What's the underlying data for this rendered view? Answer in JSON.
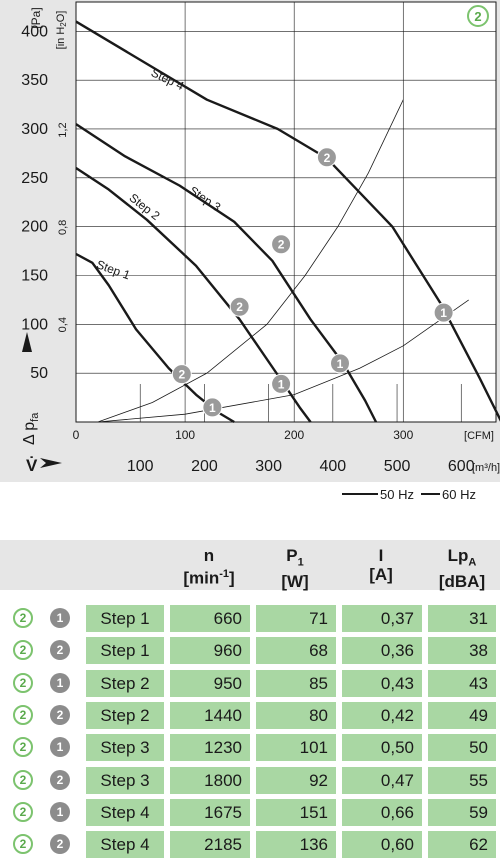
{
  "chart_data": {
    "type": "line",
    "badge": "2",
    "y_unit_left": "[Pa]",
    "y_unit_right": "[in H",
    "y_unit_right_sub": "2",
    "y_unit_right_end": "O]",
    "y_axis_label": "Δ p",
    "y_axis_label_sub": "fa",
    "x_axis_label": "V̇",
    "x_unit_cfm": "[CFM]",
    "x_unit_m3h": "[m³/h]",
    "y_ticks_pa": [
      50,
      100,
      150,
      200,
      250,
      300,
      350,
      400
    ],
    "y_ticks_inh2o": [
      "0,4",
      "0,8",
      "1,2"
    ],
    "x_ticks_cfm": [
      0,
      100,
      200,
      300
    ],
    "x_ticks_m3h": [
      100,
      200,
      300,
      400,
      500,
      600
    ],
    "xlim_cfm": [
      0,
      385
    ],
    "ylim_pa": [
      0,
      430
    ],
    "series": [
      {
        "name": "Step 1",
        "points": [
          [
            0,
            172
          ],
          [
            15,
            163
          ],
          [
            30,
            140
          ],
          [
            55,
            95
          ],
          [
            85,
            55
          ],
          [
            110,
            28
          ],
          [
            130,
            10
          ],
          [
            145,
            0
          ]
        ]
      },
      {
        "name": "Step 2",
        "points": [
          [
            0,
            260
          ],
          [
            30,
            238
          ],
          [
            65,
            207
          ],
          [
            110,
            160
          ],
          [
            150,
            105
          ],
          [
            185,
            48
          ],
          [
            205,
            15
          ],
          [
            215,
            0
          ]
        ]
      },
      {
        "name": "Step 3",
        "points": [
          [
            0,
            305
          ],
          [
            45,
            272
          ],
          [
            95,
            242
          ],
          [
            145,
            205
          ],
          [
            180,
            165
          ],
          [
            215,
            105
          ],
          [
            245,
            60
          ],
          [
            265,
            22
          ],
          [
            275,
            0
          ]
        ]
      },
      {
        "name": "Step 4",
        "points": [
          [
            0,
            410
          ],
          [
            60,
            370
          ],
          [
            120,
            330
          ],
          [
            185,
            300
          ],
          [
            230,
            270
          ],
          [
            290,
            200
          ],
          [
            335,
            120
          ],
          [
            370,
            45
          ],
          [
            390,
            0
          ]
        ]
      }
    ],
    "operating_lines": [
      {
        "points": [
          [
            20,
            0
          ],
          [
            70,
            20
          ],
          [
            120,
            50
          ],
          [
            175,
            100
          ],
          [
            210,
            150
          ],
          [
            240,
            200
          ],
          [
            268,
            255
          ],
          [
            300,
            330
          ]
        ]
      },
      {
        "points": [
          [
            20,
            0
          ],
          [
            100,
            8
          ],
          [
            200,
            28
          ],
          [
            260,
            55
          ],
          [
            300,
            78
          ],
          [
            360,
            125
          ]
        ]
      }
    ],
    "markers": [
      {
        "label": "2",
        "x": 97,
        "y": 49
      },
      {
        "label": "2",
        "x": 150,
        "y": 118
      },
      {
        "label": "2",
        "x": 188,
        "y": 182
      },
      {
        "label": "2",
        "x": 230,
        "y": 271
      },
      {
        "label": "1",
        "x": 125,
        "y": 15
      },
      {
        "label": "1",
        "x": 188,
        "y": 39
      },
      {
        "label": "1",
        "x": 242,
        "y": 60
      },
      {
        "label": "1",
        "x": 337,
        "y": 112
      }
    ],
    "legend": [
      {
        "label": "50 Hz",
        "style": "solid"
      },
      {
        "label": "60 Hz",
        "style": "dashed"
      }
    ]
  },
  "table": {
    "headers": [
      {
        "main": "n",
        "sub": "[min",
        "sup": "-1",
        "end": "]"
      },
      {
        "main": "P",
        "main_sub": "1",
        "sub": "[W]"
      },
      {
        "main": "I",
        "sub": "[A]"
      },
      {
        "main": "Lp",
        "main_sub": "A",
        "sub": "[dBA]"
      }
    ],
    "rows": [
      {
        "curve": "2",
        "freq": "1",
        "step": "Step 1",
        "n": "660",
        "p": "71",
        "i": "0,37",
        "lp": "31"
      },
      {
        "curve": "2",
        "freq": "2",
        "step": "Step 1",
        "n": "960",
        "p": "68",
        "i": "0,36",
        "lp": "38"
      },
      {
        "curve": "2",
        "freq": "1",
        "step": "Step 2",
        "n": "950",
        "p": "85",
        "i": "0,43",
        "lp": "43"
      },
      {
        "curve": "2",
        "freq": "2",
        "step": "Step 2",
        "n": "1440",
        "p": "80",
        "i": "0,42",
        "lp": "49"
      },
      {
        "curve": "2",
        "freq": "1",
        "step": "Step 3",
        "n": "1230",
        "p": "101",
        "i": "0,50",
        "lp": "50"
      },
      {
        "curve": "2",
        "freq": "2",
        "step": "Step 3",
        "n": "1800",
        "p": "92",
        "i": "0,47",
        "lp": "55"
      },
      {
        "curve": "2",
        "freq": "1",
        "step": "Step 4",
        "n": "1675",
        "p": "151",
        "i": "0,66",
        "lp": "59"
      },
      {
        "curve": "2",
        "freq": "2",
        "step": "Step 4",
        "n": "2185",
        "p": "136",
        "i": "0,60",
        "lp": "62"
      }
    ]
  }
}
